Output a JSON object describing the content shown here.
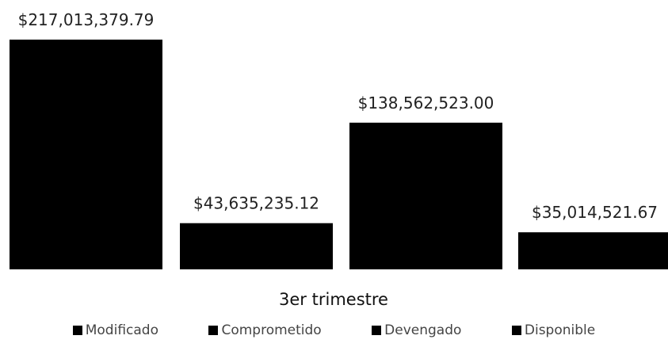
{
  "chart_data": {
    "type": "bar",
    "title": "",
    "xlabel": "3er trimestre",
    "ylabel": "",
    "categories": [
      "3er trimestre"
    ],
    "series": [
      {
        "name": "Modificado",
        "values": [
          217013379.79
        ],
        "label": "$217,013,379.79"
      },
      {
        "name": "Comprometido",
        "values": [
          43635235.12
        ],
        "label": "$43,635,235.12"
      },
      {
        "name": "Devengado",
        "values": [
          138562523.0
        ],
        "label": "$138,562,523.00"
      },
      {
        "name": "Disponible",
        "values": [
          35014521.67
        ],
        "label": "$35,014,521.67"
      }
    ],
    "ylim": [
      0,
      217013379.79
    ],
    "grid": false,
    "legend_position": "bottom",
    "colors": {
      "bar": "#000000"
    }
  }
}
